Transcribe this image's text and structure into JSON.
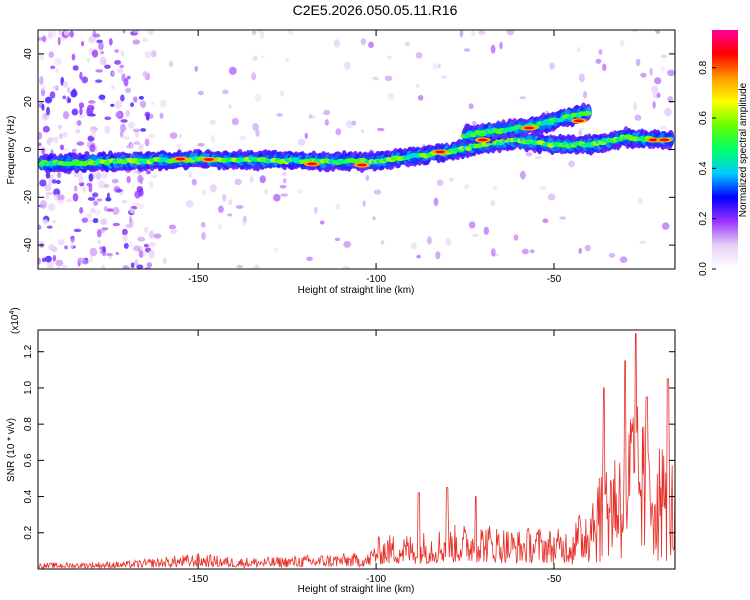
{
  "page": {
    "title": "C2E5.2026.050.05.11.R16"
  },
  "chart_data": [
    {
      "type": "heatmap",
      "title": "C2E5.2026.050.05.11.R16",
      "xlabel": "Height of straight line (km)",
      "ylabel": "Frequency (Hz)",
      "xlim": [
        -195,
        -16
      ],
      "ylim": [
        -50,
        50
      ],
      "x_ticks": [
        -150,
        -100,
        -50
      ],
      "x_tick_labels": [
        "-150",
        "-100",
        "-50"
      ],
      "y_ticks": [
        -40,
        -20,
        0,
        20,
        40
      ],
      "y_tick_labels": [
        "-40",
        "-20",
        "0",
        "20",
        "40"
      ],
      "ridge": {
        "x": [
          -195,
          -170,
          -150,
          -130,
          -110,
          -100,
          -90,
          -80,
          -70,
          -60,
          -50,
          -40,
          -30,
          -20,
          -16
        ],
        "y": [
          -6,
          -5,
          -4,
          -4.5,
          -5,
          -5,
          -3,
          -1,
          2,
          4,
          2,
          2,
          5,
          4,
          4
        ]
      },
      "secondary_ridge": {
        "x": [
          -75,
          -65,
          -55,
          -45,
          -40
        ],
        "y": [
          6,
          8,
          10,
          14,
          16
        ]
      },
      "colorbar": {
        "label": "Normalized spectral amplitude",
        "range": [
          0,
          0.95
        ],
        "ticks": [
          0.0,
          0.2,
          0.4,
          0.6,
          0.8
        ],
        "tick_labels": [
          "0.0",
          "0.2",
          "0.4",
          "0.6",
          "0.8"
        ],
        "colors": [
          "#ffffff",
          "#e6d0f6",
          "#9933ff",
          "#0000ff",
          "#00ccff",
          "#00ff66",
          "#66ff00",
          "#ffff00",
          "#ff9900",
          "#ff0000",
          "#ff0099"
        ]
      }
    },
    {
      "type": "line",
      "xlabel": "Height of straight line (km)",
      "ylabel": "SNR (10 * v/v)",
      "y_multiplier": "(x10",
      "y_multiplier_exp": "4",
      "y_multiplier_close": ")",
      "xlim": [
        -195,
        -16
      ],
      "ylim": [
        0,
        1.32
      ],
      "x_ticks": [
        -150,
        -100,
        -50
      ],
      "x_tick_labels": [
        "-150",
        "-100",
        "-50"
      ],
      "y_ticks": [
        0.2,
        0.4,
        0.6,
        0.8,
        1.0,
        1.2
      ],
      "y_tick_labels": [
        "0.2",
        "0.4",
        "0.6",
        "0.8",
        "1.0",
        "1.2"
      ],
      "color": "#e8302a",
      "envelope": {
        "x": [
          -195,
          -170,
          -160,
          -150,
          -140,
          -130,
          -120,
          -110,
          -102,
          -100,
          -95,
          -90,
          -80,
          -70,
          -60,
          -55,
          -50,
          -45,
          -42,
          -38,
          -35,
          -30,
          -28,
          -25,
          -22,
          -20,
          -18,
          -16
        ],
        "y": [
          0.03,
          0.04,
          0.06,
          0.08,
          0.06,
          0.06,
          0.07,
          0.08,
          0.08,
          0.16,
          0.18,
          0.18,
          0.22,
          0.24,
          0.2,
          0.22,
          0.2,
          0.22,
          0.3,
          0.5,
          0.6,
          0.7,
          0.9,
          0.75,
          0.7,
          0.65,
          0.6,
          0.55
        ]
      },
      "peaks": [
        {
          "x": -27,
          "y": 1.3
        },
        {
          "x": -30,
          "y": 1.15
        },
        {
          "x": -36,
          "y": 1.0
        },
        {
          "x": -24,
          "y": 0.95
        },
        {
          "x": -18,
          "y": 1.05
        },
        {
          "x": -88,
          "y": 0.42
        },
        {
          "x": -80,
          "y": 0.45
        },
        {
          "x": -72,
          "y": 0.4
        }
      ]
    }
  ]
}
